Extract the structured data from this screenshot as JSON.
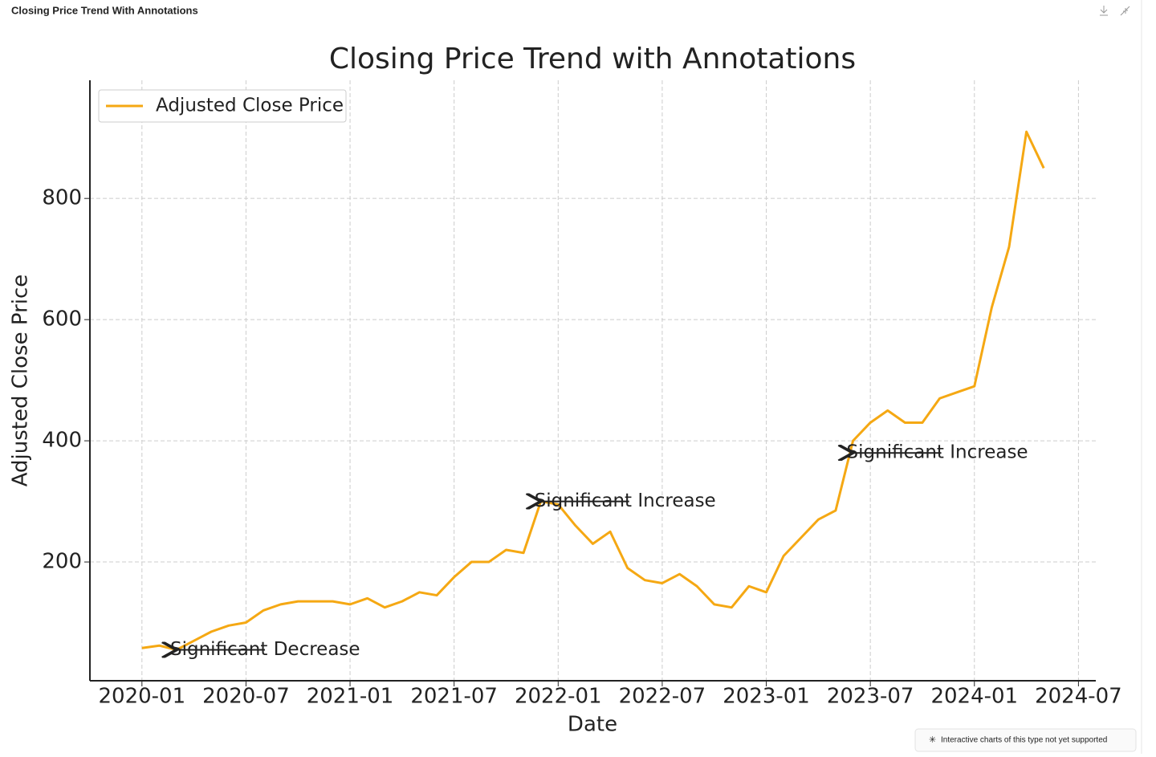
{
  "header": {
    "title": "Closing Price Trend With Annotations"
  },
  "footer": {
    "note": "Interactive charts of this type not yet supported"
  },
  "chart_data": {
    "type": "line",
    "title": "Closing Price Trend with Annotations",
    "xlabel": "Date",
    "ylabel": "Adjusted Close Price",
    "x": [
      "2020-01",
      "2020-02",
      "2020-03",
      "2020-04",
      "2020-05",
      "2020-06",
      "2020-07",
      "2020-08",
      "2020-09",
      "2020-10",
      "2020-11",
      "2020-12",
      "2021-01",
      "2021-02",
      "2021-03",
      "2021-04",
      "2021-05",
      "2021-06",
      "2021-07",
      "2021-08",
      "2021-09",
      "2021-10",
      "2021-11",
      "2021-12",
      "2022-01",
      "2022-02",
      "2022-03",
      "2022-04",
      "2022-05",
      "2022-06",
      "2022-07",
      "2022-08",
      "2022-09",
      "2022-10",
      "2022-11",
      "2022-12",
      "2023-01",
      "2023-02",
      "2023-03",
      "2023-04",
      "2023-05",
      "2023-06",
      "2023-07",
      "2023-08",
      "2023-09",
      "2023-10",
      "2023-11",
      "2023-12",
      "2024-01",
      "2024-02",
      "2024-03",
      "2024-04",
      "2024-05"
    ],
    "series": [
      {
        "name": "Adjusted Close Price",
        "color": "#f5a813",
        "values": [
          58,
          62,
          55,
          70,
          85,
          95,
          100,
          120,
          130,
          135,
          135,
          135,
          130,
          140,
          125,
          135,
          150,
          145,
          175,
          200,
          200,
          220,
          215,
          300,
          295,
          260,
          230,
          250,
          190,
          170,
          165,
          180,
          160,
          130,
          125,
          160,
          150,
          210,
          240,
          270,
          285,
          400,
          430,
          450,
          430,
          430,
          470,
          480,
          490,
          620,
          720,
          910,
          850
        ]
      }
    ],
    "xlim": [
      "2019-10",
      "2024-08"
    ],
    "xticks": [
      "2020-01",
      "2020-07",
      "2021-01",
      "2021-07",
      "2022-01",
      "2022-07",
      "2023-01",
      "2023-07",
      "2024-01",
      "2024-07"
    ],
    "ylim": [
      4,
      995
    ],
    "yticks": [
      200,
      400,
      600,
      800
    ],
    "grid": true,
    "legend": "upper left",
    "annotations": [
      {
        "text": "Significant Decrease",
        "x": "2020-03",
        "y": 55
      },
      {
        "text": "Significant Increase",
        "x": "2021-12",
        "y": 300
      },
      {
        "text": "Significant Increase",
        "x": "2023-06",
        "y": 380
      }
    ]
  }
}
